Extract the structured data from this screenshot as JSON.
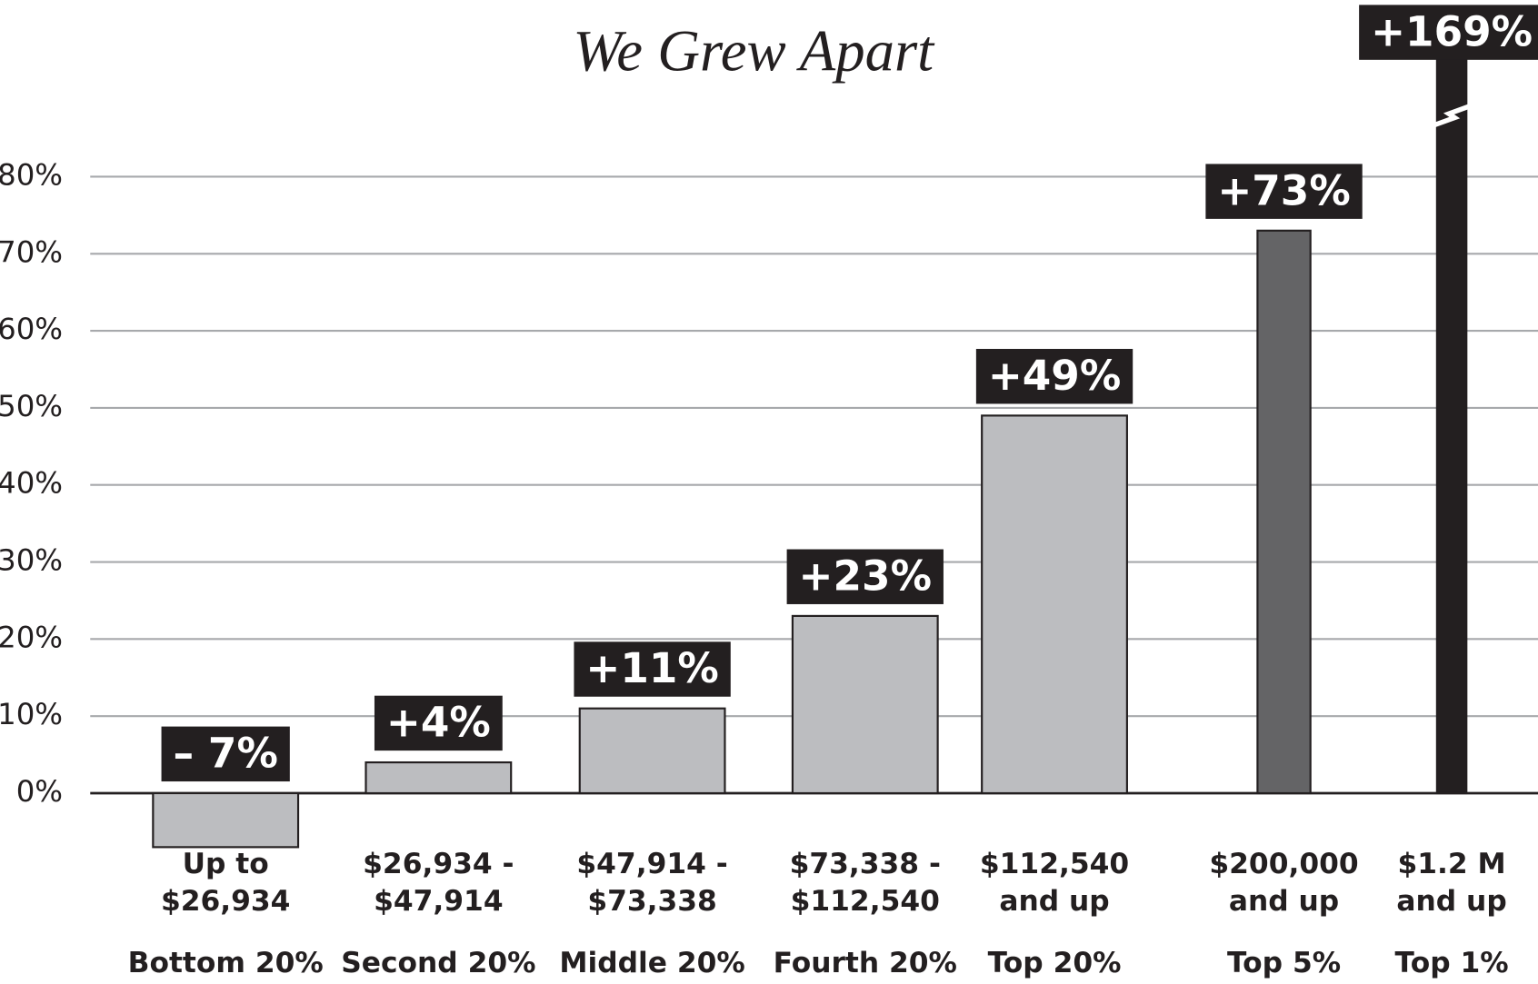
{
  "chart_data": {
    "type": "bar",
    "title": "We Grew Apart",
    "categories": [
      [
        "Up to",
        "$26,934"
      ],
      [
        "$26,934 -",
        "$47,914"
      ],
      [
        "$47,914 -",
        "$73,338"
      ],
      [
        "$73,338 -",
        "$112,540"
      ],
      [
        "$112,540",
        "and up"
      ],
      [
        "$200,000",
        "and up"
      ],
      [
        "$1.2 M",
        "and up"
      ]
    ],
    "groups": [
      "Bottom 20%",
      "Second 20%",
      "Middle 20%",
      "Fourth 20%",
      "Top 20%",
      "Top 5%",
      "Top 1%"
    ],
    "values": [
      -7,
      4,
      11,
      23,
      49,
      73,
      169
    ],
    "value_labels": [
      "– 7%",
      "+4%",
      "+11%",
      "+23%",
      "+49%",
      "+73%",
      "+169%"
    ],
    "colors": [
      "#bcbdc0",
      "#bcbdc0",
      "#bcbdc0",
      "#bcbdc0",
      "#bcbdc0",
      "#646466",
      "#231f20"
    ],
    "ylim": [
      -10,
      100
    ],
    "yticks": [
      {
        "value": 0,
        "label": "0%"
      },
      {
        "value": 10,
        "label": "10%"
      },
      {
        "value": 20,
        "label": "20%"
      },
      {
        "value": 30,
        "label": "30%"
      },
      {
        "value": 40,
        "label": "40%"
      },
      {
        "value": 50,
        "label": "50%"
      },
      {
        "value": 60,
        "label": "60%"
      },
      {
        "value": 70,
        "label": "70%"
      },
      {
        "value": 80,
        "label": "80%"
      }
    ],
    "grid": true
  }
}
